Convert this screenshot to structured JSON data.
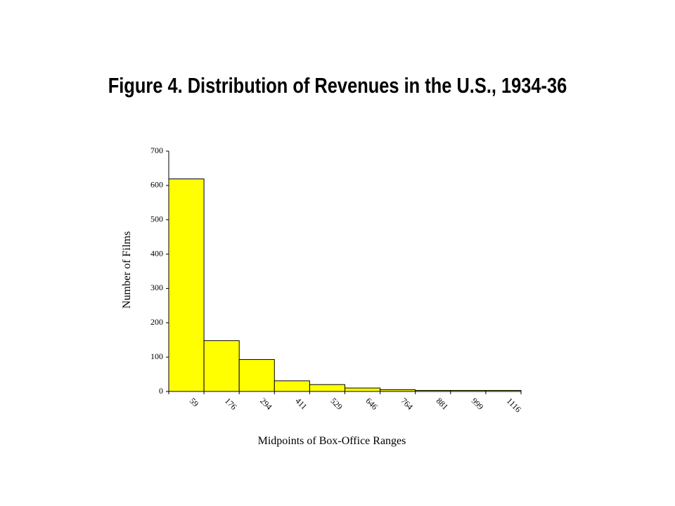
{
  "chart_data": {
    "type": "bar",
    "title": "Figure 4. Distribution of Revenues in the U.S., 1934-36",
    "xlabel": "Midpoints of Box-Office Ranges",
    "ylabel": "Number of Films",
    "categories": [
      "59",
      "176",
      "294",
      "411",
      "529",
      "646",
      "764",
      "881",
      "999",
      "1116"
    ],
    "values": [
      619,
      148,
      93,
      31,
      20,
      10,
      5,
      3,
      3,
      3
    ],
    "ylim": [
      0,
      700
    ],
    "yticks": [
      0,
      100,
      200,
      300,
      400,
      500,
      600,
      700
    ],
    "bar_color": "#ffff00",
    "bar_edge_color": "#000000",
    "grid": false,
    "legend": "none"
  }
}
